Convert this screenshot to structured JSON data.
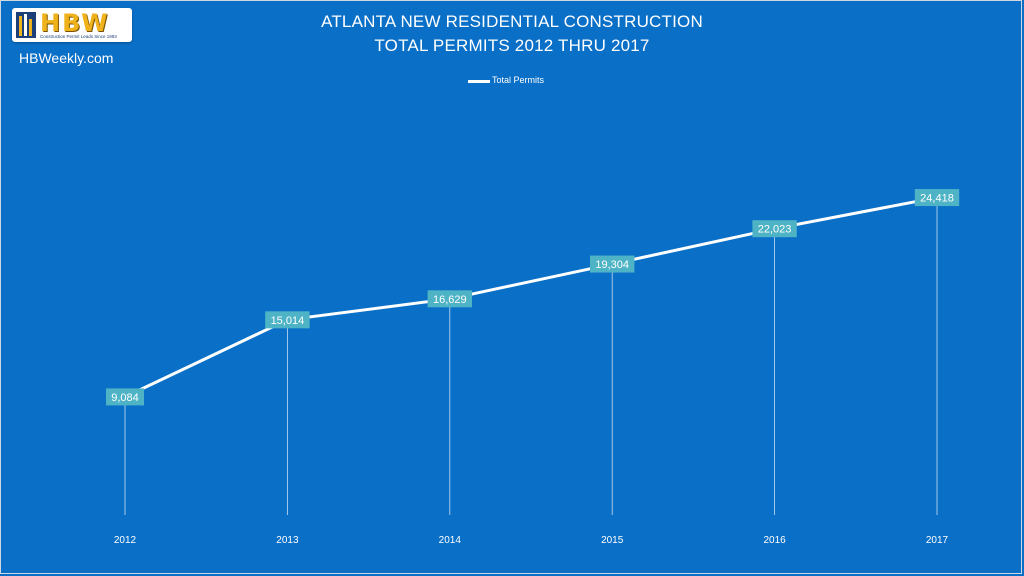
{
  "brand": {
    "logo_text": "HBW",
    "logo_tagline": "Construction Permit Leads Since 1993",
    "site": "HBWeekly.com"
  },
  "colors": {
    "background": "#0a6fc7",
    "line": "#ffffff",
    "label_box": "#4fb3c6"
  },
  "chart_data": {
    "type": "line",
    "title": "ATLANTA NEW RESIDENTIAL CONSTRUCTION",
    "subtitle": "TOTAL PERMITS 2012 THRU 2017",
    "categories": [
      "2012",
      "2013",
      "2014",
      "2015",
      "2016",
      "2017"
    ],
    "series": [
      {
        "name": "Total Permits",
        "values": [
          9084,
          15014,
          16629,
          19304,
          22023,
          24418
        ],
        "labels": [
          "9,084",
          "15,014",
          "16,629",
          "19,304",
          "22,023",
          "24,418"
        ]
      }
    ],
    "ylim": [
      0,
      30000
    ],
    "grid": false,
    "drop_lines": true,
    "legend": "top-center"
  }
}
